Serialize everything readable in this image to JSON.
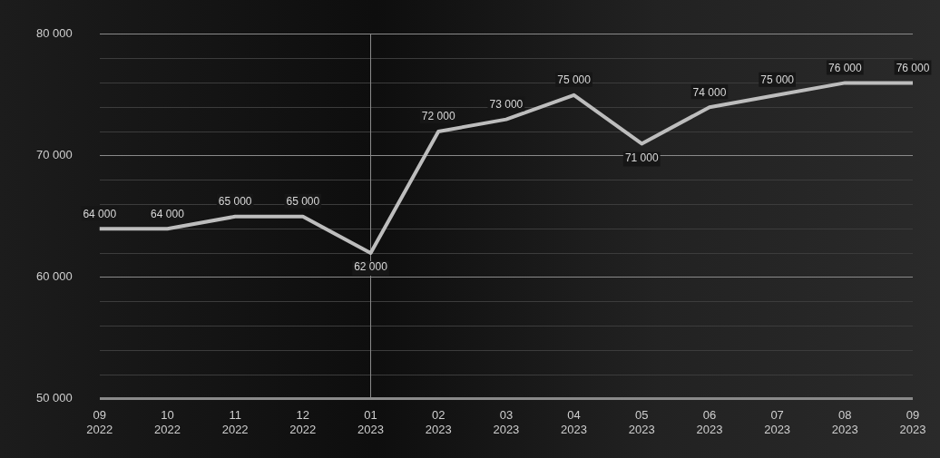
{
  "chart_data": {
    "type": "line",
    "categories": [
      "09 2022",
      "10 2022",
      "11 2022",
      "12 2022",
      "01 2023",
      "02 2023",
      "03 2023",
      "04 2023",
      "05 2023",
      "06 2023",
      "07 2023",
      "08 2023",
      "09 2023"
    ],
    "series": [
      {
        "color": "#bdbdbd",
        "values": [
          64000,
          64000,
          65000,
          65000,
          62000,
          72000,
          73000,
          75000,
          71000,
          74000,
          75000,
          76000,
          76000
        ],
        "value_labels": [
          "64 000",
          "64 000",
          "65 000",
          "65 000",
          "62 000",
          "72 000",
          "73 000",
          "75 000",
          "71 000",
          "74 000",
          "75 000",
          "76 000",
          "76 000"
        ]
      }
    ],
    "ylim": [
      50000,
      80000
    ],
    "yticks": [
      {
        "value": 50000,
        "label": "50 000"
      },
      {
        "value": 52000,
        "label": null
      },
      {
        "value": 54000,
        "label": null
      },
      {
        "value": 56000,
        "label": null
      },
      {
        "value": 58000,
        "label": null
      },
      {
        "value": 60000,
        "label": "60 000"
      },
      {
        "value": 62000,
        "label": null
      },
      {
        "value": 64000,
        "label": null
      },
      {
        "value": 66000,
        "label": null
      },
      {
        "value": 68000,
        "label": null
      },
      {
        "value": 70000,
        "label": "70 000"
      },
      {
        "value": 72000,
        "label": null
      },
      {
        "value": 74000,
        "label": null
      },
      {
        "value": 76000,
        "label": null
      },
      {
        "value": 78000,
        "label": null
      },
      {
        "value": 80000,
        "label": "80 000"
      }
    ],
    "grid": "y",
    "legend": false,
    "marker": "none",
    "line_style": "solid",
    "ref_lines": [
      {
        "axis": "x",
        "value": "01 2023",
        "color": "#8a8a8a"
      }
    ]
  }
}
